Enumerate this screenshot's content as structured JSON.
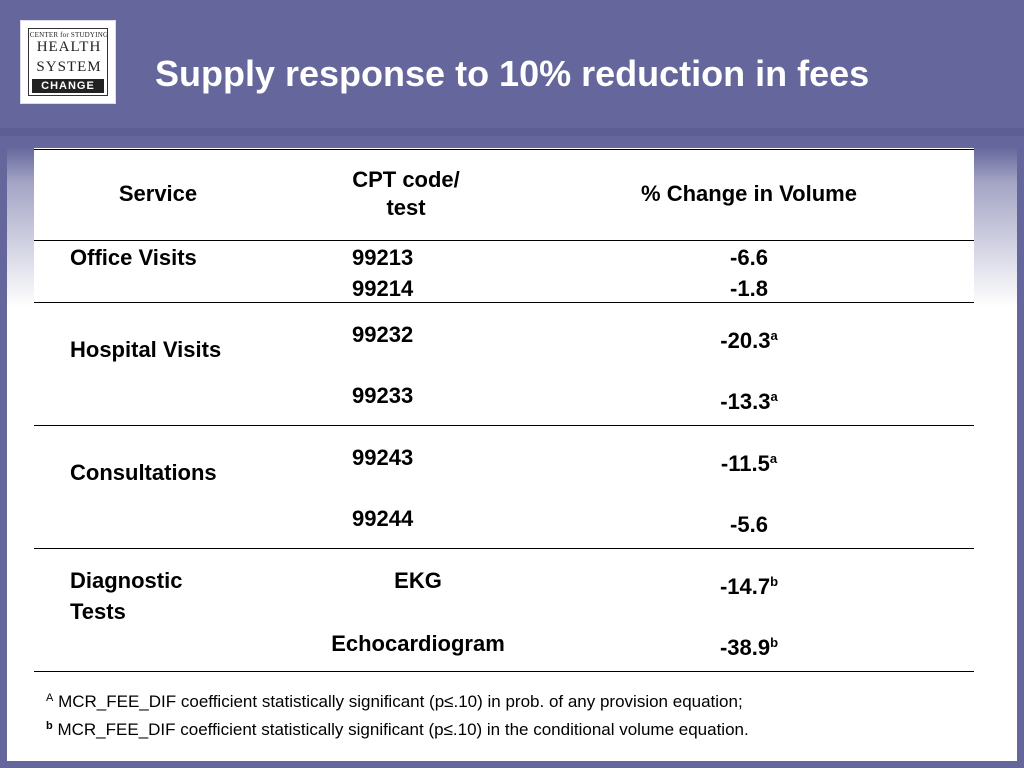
{
  "logo": {
    "line1": "CENTER for STUDYING",
    "line2": "HEALTH",
    "line3": "SYSTEM",
    "line4": "CHANGE"
  },
  "slide": {
    "title": "Supply response to 10% reduction in fees"
  },
  "table": {
    "headers": {
      "service": "Service",
      "code_line1": "CPT code/",
      "code_line2": "test",
      "change": "% Change in Volume"
    },
    "groups": [
      {
        "service": "Office Visits",
        "rows": [
          {
            "code": "99213",
            "value": "-6.6",
            "note": ""
          },
          {
            "code": "99214",
            "value": "-1.8",
            "note": ""
          }
        ]
      },
      {
        "service": "Hospital Visits",
        "rows": [
          {
            "code": "99232",
            "value": "-20.3",
            "note": "a"
          },
          {
            "code": "99233",
            "value": "-13.3",
            "note": "a"
          }
        ]
      },
      {
        "service": "Consultations",
        "rows": [
          {
            "code": "99243",
            "value": "-11.5",
            "note": "a"
          },
          {
            "code": "99244",
            "value": "-5.6",
            "note": ""
          }
        ]
      },
      {
        "service_line1": "Diagnostic",
        "service_line2": "Tests",
        "rows": [
          {
            "code": "EKG",
            "value": "-14.7",
            "note": "b"
          },
          {
            "code": "Echocardiogram",
            "value": "-38.9",
            "note": "b"
          }
        ]
      }
    ]
  },
  "footnotes": [
    {
      "mark": "A",
      "text": "MCR_FEE_DIF coefficient statistically significant (p≤.10) in prob. of any provision equation;"
    },
    {
      "mark": "b",
      "text": "MCR_FEE_DIF coefficient statistically significant (p≤.10)  in the conditional volume equation."
    }
  ]
}
